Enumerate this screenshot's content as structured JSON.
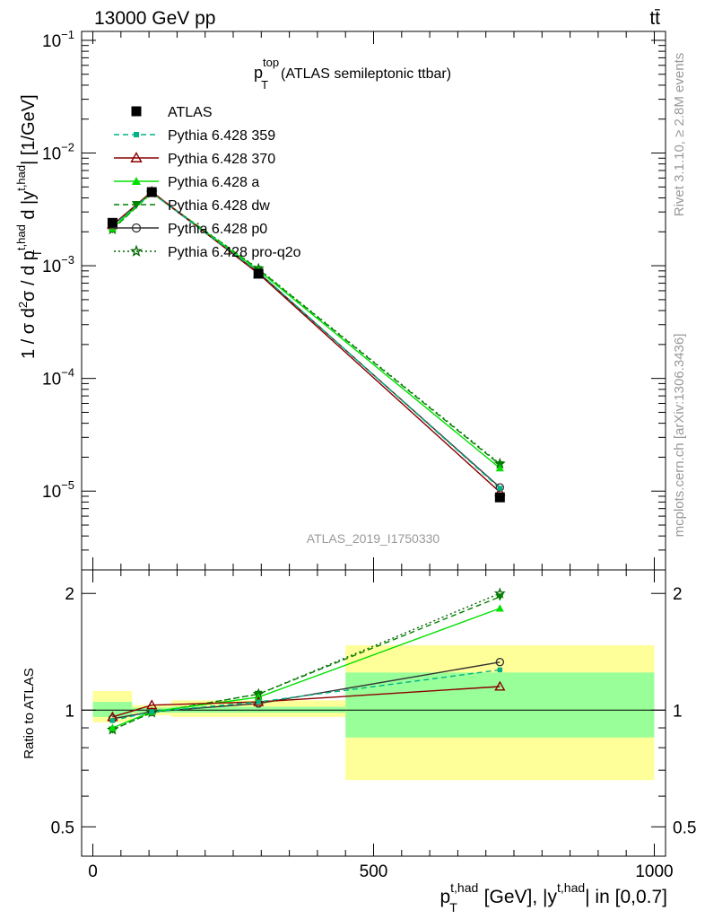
{
  "header": {
    "left": "13000 GeV pp",
    "right": "tt̄"
  },
  "side_labels": {
    "rivet": "Rivet 3.1.10, ≥ 2.8M events",
    "mcplots": "mcplots.cern.ch [arXiv:1306.3436]"
  },
  "analysis_id": "ATLAS_2019_I1750330",
  "chart_data": [
    {
      "type": "line",
      "panel": "main",
      "title": "p_T^top (ATLAS semileptonic ttbar)",
      "title_base": "p",
      "title_sub": "T",
      "title_sup": "top",
      "title_rest": "(ATLAS semileptonic ttbar)",
      "ylabel": "1 / σ d²σ / d p_T^{t,had} d |y^{t,had}| [1/GeV]",
      "yscale": "log",
      "xlim": [
        -20,
        1020
      ],
      "ylim": [
        2e-06,
        0.12
      ],
      "y_ticks": [
        {
          "v": 0.1,
          "m": "10",
          "e": "−1"
        },
        {
          "v": 0.01,
          "m": "10",
          "e": "−2"
        },
        {
          "v": 0.001,
          "m": "10",
          "e": "−3"
        },
        {
          "v": 0.0001,
          "m": "10",
          "e": "−4"
        },
        {
          "v": 1e-05,
          "m": "10",
          "e": "−5"
        }
      ],
      "x": [
        35,
        105,
        295,
        725
      ],
      "series": [
        {
          "name": "ATLAS",
          "color": "#000000",
          "marker": "square",
          "line": "none",
          "values": [
            0.0024,
            0.0045,
            0.00085,
            8.8e-06
          ]
        },
        {
          "name": "Pythia 6.428 359",
          "color": "#00b386",
          "marker": "smallsquare",
          "line": "dashed",
          "values": [
            0.00225,
            0.00445,
            0.00088,
            1.06e-05
          ]
        },
        {
          "name": "Pythia 6.428 370",
          "color": "#8b0000",
          "marker": "triangle-open",
          "line": "solid",
          "values": [
            0.0023,
            0.00455,
            0.00085,
            9.8e-06
          ]
        },
        {
          "name": "Pythia 6.428 a",
          "color": "#00e000",
          "marker": "triangle",
          "line": "solid",
          "values": [
            0.00215,
            0.00445,
            0.00091,
            1.6e-05
          ]
        },
        {
          "name": "Pythia 6.428 dw",
          "color": "#008000",
          "marker": "triangle-down",
          "line": "dashed",
          "values": [
            0.0021,
            0.00443,
            0.00093,
            1.72e-05
          ]
        },
        {
          "name": "Pythia 6.428 p0",
          "color": "#333333",
          "marker": "circle-open",
          "line": "solid",
          "values": [
            0.00228,
            0.00445,
            0.00087,
            1.08e-05
          ]
        },
        {
          "name": "Pythia 6.428 pro-q2o",
          "color": "#006400",
          "marker": "star",
          "line": "dotted",
          "values": [
            0.0021,
            0.00443,
            0.00094,
            1.75e-05
          ]
        }
      ]
    },
    {
      "type": "line",
      "panel": "ratio",
      "ylabel": "Ratio to ATLAS",
      "xlabel": "p_T^{t,had} [GeV], |y^{t,had}| in [0,0.7]",
      "xlim": [
        -20,
        1020
      ],
      "ylim": [
        0.42,
        2.3
      ],
      "x_ticks": [
        0,
        500,
        1000
      ],
      "y_ticks": [
        0.5,
        1,
        2
      ],
      "bands": [
        {
          "xlo": 0,
          "xhi": 70,
          "inner": [
            0.96,
            1.05
          ],
          "outer": [
            0.93,
            1.12
          ]
        },
        {
          "xlo": 70,
          "xhi": 140,
          "inner": [
            0.985,
            1.015
          ],
          "outer": [
            0.97,
            1.03
          ]
        },
        {
          "xlo": 140,
          "xhi": 450,
          "inner": [
            0.985,
            1.02
          ],
          "outer": [
            0.96,
            1.06
          ]
        },
        {
          "xlo": 450,
          "xhi": 1000,
          "inner": [
            0.85,
            1.25
          ],
          "outer": [
            0.66,
            1.47
          ]
        }
      ],
      "x": [
        35,
        105,
        295,
        725
      ],
      "series": [
        {
          "name": "Pythia 6.428 359",
          "values": [
            0.94,
            0.99,
            1.05,
            1.27
          ]
        },
        {
          "name": "Pythia 6.428 370",
          "values": [
            0.96,
            1.03,
            1.05,
            1.15
          ]
        },
        {
          "name": "Pythia 6.428 a",
          "values": [
            0.9,
            0.99,
            1.08,
            1.83
          ]
        },
        {
          "name": "Pythia 6.428 dw",
          "values": [
            0.89,
            0.985,
            1.1,
            1.96
          ]
        },
        {
          "name": "Pythia 6.428 p0",
          "values": [
            0.95,
            0.99,
            1.04,
            1.33
          ]
        },
        {
          "name": "Pythia 6.428 pro-q2o",
          "values": [
            0.89,
            0.985,
            1.1,
            2.0
          ]
        }
      ]
    }
  ]
}
